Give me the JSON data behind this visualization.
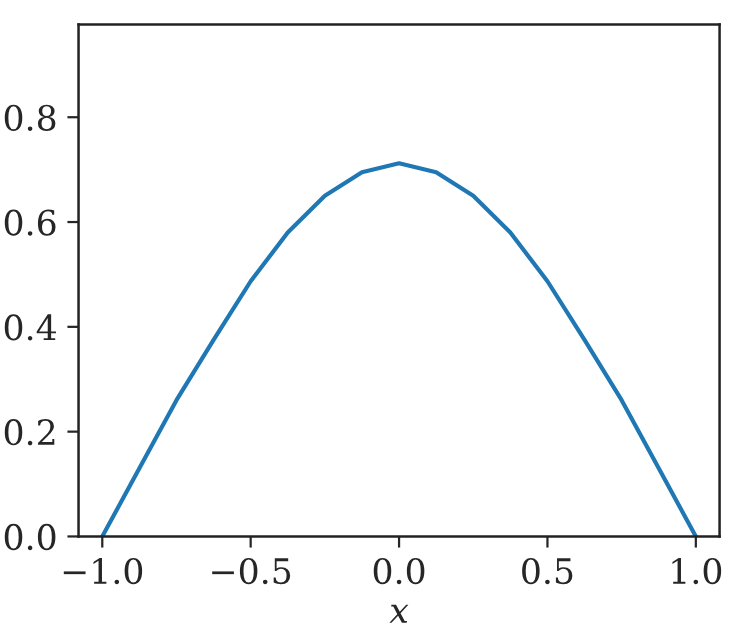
{
  "chart_data": {
    "type": "line",
    "xlabel": "x",
    "x": [
      -1.0,
      -0.875,
      -0.75,
      -0.625,
      -0.5,
      -0.375,
      -0.25,
      -0.125,
      0.0,
      0.125,
      0.25,
      0.375,
      0.5,
      0.625,
      0.75,
      0.875,
      1.0
    ],
    "series": [
      {
        "color": "#1f77b4",
        "values": [
          0.0,
          0.13,
          0.26,
          0.375,
          0.487,
          0.58,
          0.65,
          0.695,
          0.712,
          0.695,
          0.65,
          0.58,
          0.487,
          0.375,
          0.26,
          0.13,
          0.0
        ]
      }
    ],
    "xlim": [
      -1.08,
      1.08
    ],
    "ylim": [
      0,
      0.977
    ],
    "xticks": [
      {
        "value": -1.0,
        "label": "−1.0"
      },
      {
        "value": -0.5,
        "label": "−0.5"
      },
      {
        "value": 0.0,
        "label": "0.0"
      },
      {
        "value": 0.5,
        "label": "0.5"
      },
      {
        "value": 1.0,
        "label": "1.0"
      }
    ],
    "yticks": [
      {
        "value": 0.0,
        "label": "0.0"
      },
      {
        "value": 0.2,
        "label": "0.2"
      },
      {
        "value": 0.4,
        "label": "0.4"
      },
      {
        "value": 0.6,
        "label": "0.6"
      },
      {
        "value": 0.8,
        "label": "0.8"
      }
    ],
    "grid": false,
    "legend": false,
    "marker": "none",
    "line_style": "solid"
  }
}
